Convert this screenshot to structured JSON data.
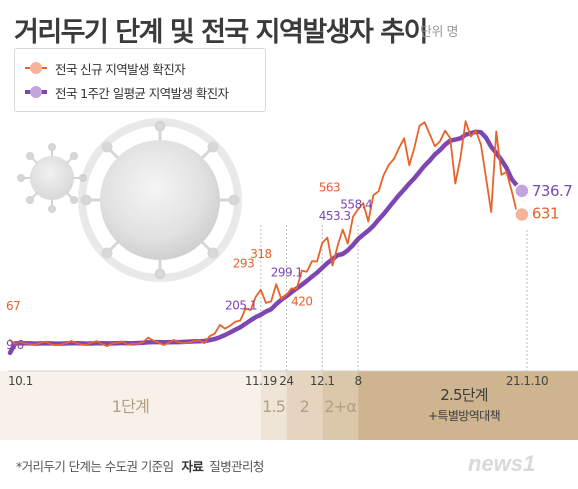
{
  "header": {
    "title": "거리두기 단계 및 전국 지역발생자 추이",
    "unit": "단위 명"
  },
  "legend": {
    "items": [
      {
        "label": "전국 신규 지역발생 확진자",
        "color": "#e8622c",
        "dot": "#f4b39a"
      },
      {
        "label": "전국 1주간 일평균 지역발생 확진자",
        "color": "#7e46b0",
        "dot": "#c2a5df"
      }
    ]
  },
  "footer": {
    "note": "*거리두기 단계는 수도권 기준임",
    "source_key": "자료",
    "source_value": "질병관리청"
  },
  "logo": {
    "text": "news1"
  },
  "chart_data": {
    "type": "line",
    "x_range": [
      "2020-10-01",
      "2021-01-10"
    ],
    "x_tick_labels": [
      "10.1",
      "11.19",
      "24",
      "12.1",
      "8",
      "21.1.10"
    ],
    "y_range": [
      0,
      1100
    ],
    "series": [
      {
        "name": "전국 신규 지역발생 확진자",
        "color": "#e8622c",
        "values": [
          67,
          50,
          58,
          53,
          48,
          47,
          55,
          60,
          48,
          44,
          47,
          54,
          63,
          53,
          47,
          46,
          57,
          62,
          49,
          40,
          52,
          55,
          60,
          46,
          51,
          50,
          58,
          78,
          64,
          56,
          45,
          54,
          68,
          57,
          53,
          56,
          63,
          66,
          53,
          84,
          96,
          135,
          118,
          132,
          149,
          155,
          208,
          202,
          261,
          293,
          234,
          240,
          318,
          251,
          270,
          299,
          297,
          379,
          374,
          421,
          420,
          503,
          527,
          402,
          490,
          563,
          500,
          621,
          654,
          682,
          600,
          718,
          735,
          808,
          854,
          880,
          929,
          973,
          852,
          931,
          1029,
          1045,
          992,
          937,
          960,
          1007,
          974,
          770,
          887,
          1050,
          981,
          1007,
          945,
          797,
          642,
          1004,
          809,
          821,
          738,
          641,
          631
        ],
        "labels": [
          {
            "index": 0,
            "text": "67"
          },
          {
            "index": 49,
            "text": "293"
          },
          {
            "index": 52,
            "text": "318"
          },
          {
            "index": 60,
            "text": "420"
          },
          {
            "index": 65,
            "text": "563"
          },
          {
            "index": 100,
            "text": "631"
          }
        ]
      },
      {
        "name": "전국 1주간 일평균 지역발생 확진자",
        "color": "#7e46b0",
        "values": [
          9.6,
          52,
          53,
          53,
          52,
          51,
          52,
          53,
          52,
          51,
          51,
          52,
          53,
          53,
          52,
          51,
          52,
          53,
          53,
          52,
          52,
          53,
          54,
          53,
          53,
          54,
          55,
          57,
          58,
          58,
          57,
          57,
          58,
          58,
          59,
          60,
          61,
          62,
          63,
          67,
          72,
          80,
          90,
          101,
          113,
          125,
          140,
          156,
          170,
          181,
          195,
          205.1,
          228,
          248,
          264,
          282,
          299.1,
          315,
          333,
          352,
          370,
          391,
          413,
          430,
          448,
          453.3,
          470,
          494,
          521,
          540,
          558.4,
          580,
          608,
          633,
          662,
          690,
          718,
          743,
          770,
          794,
          822,
          850,
          873,
          900,
          920,
          944,
          962,
          967,
          973,
          989,
          996,
          1002,
          1000,
          976,
          935,
          907,
          876,
          840,
          790,
          762,
          736.7
        ],
        "labels": [
          {
            "index": 0,
            "text": "9.6"
          },
          {
            "index": 51,
            "text": "205.1"
          },
          {
            "index": 56,
            "text": "299.1"
          },
          {
            "index": 65,
            "text": "453.3"
          },
          {
            "index": 70,
            "text": "558.4"
          },
          {
            "index": 100,
            "text": "736.7"
          }
        ]
      }
    ],
    "stages": [
      {
        "label": "1단계",
        "from": "10.1",
        "to": "11.19",
        "color": "#f7f1e9"
      },
      {
        "label": "1.5",
        "from": "11.19",
        "to": "24",
        "color": "#efe5d7"
      },
      {
        "label": "2",
        "from": "24",
        "to": "12.1",
        "color": "#e5d5bf"
      },
      {
        "label": "2+α",
        "from": "12.1",
        "to": "8",
        "color": "#dbc7aa"
      },
      {
        "label": "2.5단계",
        "sublabel": "+특별방역대책",
        "from": "8",
        "to": "21.1.10",
        "color": "#ceb58f"
      }
    ]
  }
}
